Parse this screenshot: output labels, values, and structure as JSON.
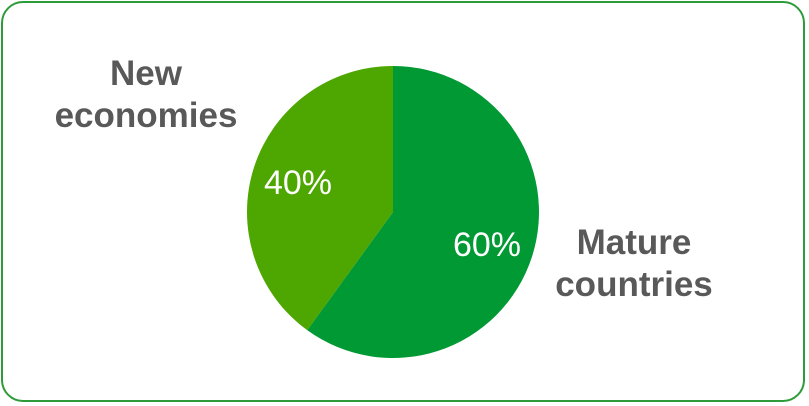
{
  "chart_data": {
    "type": "pie",
    "slices": [
      {
        "category": [
          "Mature",
          "countries"
        ],
        "value": 60,
        "data_label": "60%",
        "color": "#009933"
      },
      {
        "category": [
          "New",
          "economies"
        ],
        "value": 40,
        "data_label": "40%",
        "color": "#4ea600"
      }
    ],
    "start_angle_deg": 0,
    "direction": "clockwise",
    "label_color": "#595959",
    "data_label_color": "#ffffff",
    "border_color": "#2e9b3a"
  }
}
